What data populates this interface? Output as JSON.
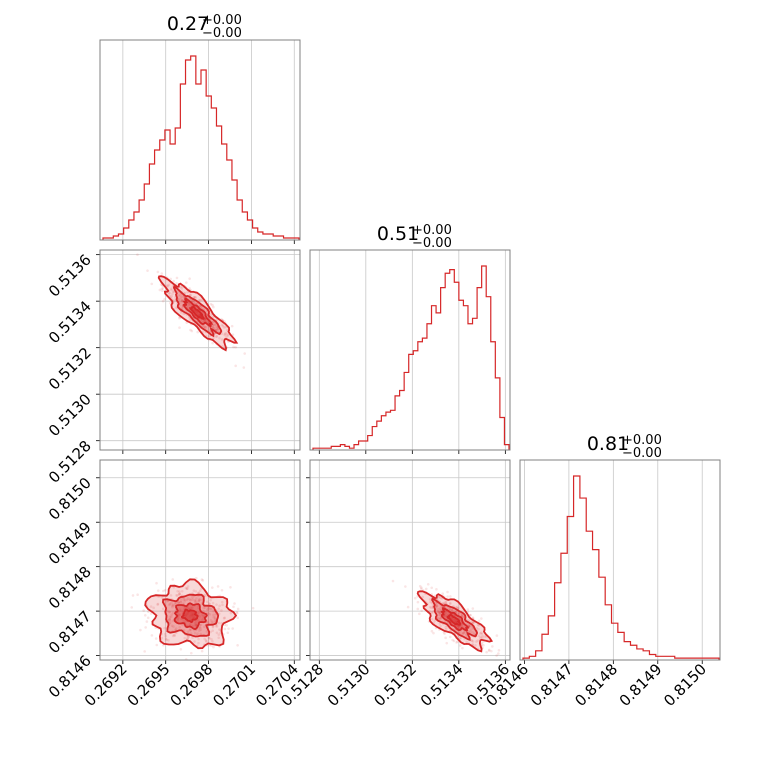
{
  "chart_data": {
    "type": "corner",
    "color": "#d62728",
    "grid": true,
    "parameters": [
      {
        "value": "0.27",
        "upper": "+0.00",
        "lower": "−0.00",
        "range": [
          0.26904,
          0.27044
        ],
        "ticks": [
          0.2692,
          0.2695,
          0.2698,
          0.2701,
          0.2704
        ],
        "tick_labels": [
          "0.2692",
          "0.2695",
          "0.2698",
          "0.2701",
          "0.2704"
        ]
      },
      {
        "value": "0.51",
        "upper": "+0.00",
        "lower": "−0.00",
        "range": [
          0.51276,
          0.51362
        ],
        "ticks": [
          0.5128,
          0.513,
          0.5132,
          0.5134,
          0.5136
        ],
        "tick_labels": [
          "0.5128",
          "0.5130",
          "0.5132",
          "0.5134",
          "0.5136"
        ]
      },
      {
        "value": "0.81",
        "upper": "+0.00",
        "lower": "−0.00",
        "range": [
          0.81459,
          0.81504
        ],
        "ticks": [
          0.8146,
          0.8147,
          0.8148,
          0.8149,
          0.815
        ],
        "tick_labels": [
          "0.8146",
          "0.8147",
          "0.8148",
          "0.8149",
          "0.8150"
        ]
      }
    ],
    "histograms": [
      {
        "param": 0,
        "counts": [
          1,
          1,
          2,
          3,
          6,
          10,
          14,
          20,
          28,
          38,
          45,
          50,
          55,
          48,
          56,
          78,
          90,
          92,
          78,
          85,
          72,
          66,
          57,
          48,
          40,
          30,
          20,
          14,
          10,
          6,
          4,
          3,
          3,
          2,
          2,
          1,
          1,
          1
        ]
      },
      {
        "param": 1,
        "counts": [
          1,
          1,
          1,
          1,
          2,
          2,
          3,
          2,
          1,
          3,
          5,
          5,
          8,
          13,
          16,
          19,
          21,
          22,
          30,
          33,
          43,
          53,
          55,
          60,
          62,
          70,
          80,
          76,
          90,
          98,
          100,
          93,
          83,
          80,
          70,
          73,
          90,
          102,
          85,
          60,
          40,
          18,
          3
        ]
      },
      {
        "param": 2,
        "counts": [
          1,
          2,
          5,
          14,
          24,
          42,
          58,
          78,
          100,
          88,
          70,
          60,
          45,
          30,
          20,
          15,
          10,
          8,
          6,
          5,
          3,
          2,
          2,
          2,
          1,
          1,
          1,
          1,
          1,
          1,
          1
        ]
      }
    ],
    "pairs": [
      {
        "x": 0,
        "y": 1,
        "center": [
          0.26972,
          0.51335
        ],
        "spread": [
          0.00012,
          7e-05
        ],
        "corr": -0.85
      },
      {
        "x": 0,
        "y": 2,
        "center": [
          0.26967,
          0.81469
        ],
        "spread": [
          0.00014,
          3.5e-05
        ],
        "corr": -0.1
      },
      {
        "x": 1,
        "y": 2,
        "center": [
          0.51338,
          0.81468
        ],
        "spread": [
          7e-05,
          3e-05
        ],
        "corr": -0.75
      }
    ]
  }
}
